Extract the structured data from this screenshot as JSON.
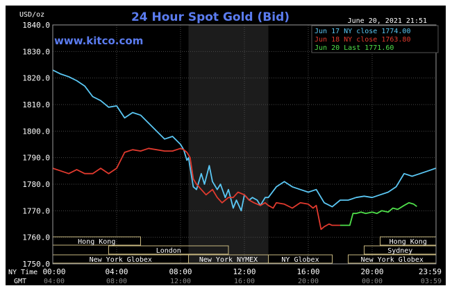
{
  "header": {
    "title": "24 Hour Spot Gold (Bid)",
    "units": "USD/oz",
    "timestamp": "June 20, 2021 21:51",
    "watermark": "www.kitco.com"
  },
  "legend": [
    {
      "label": "Jun 17 NY close 1774.00",
      "color": "#5bc8f5"
    },
    {
      "label": "Jun 18 NY close 1763.80",
      "color": "#e23a2e"
    },
    {
      "label": "Jun 20 Last 1771.60",
      "color": "#4fe04a"
    }
  ],
  "axes": {
    "row_label_nytime": "NY Time",
    "row_label_gmt": "GMT",
    "y_ticks": [
      "1840.0",
      "1830.0",
      "1820.0",
      "1810.0",
      "1800.0",
      "1790.0",
      "1780.0",
      "1770.0",
      "1760.0",
      "1750.0"
    ],
    "x_ticks_ny": [
      "00:00",
      "04:00",
      "08:00",
      "12:00",
      "16:00",
      "20:00",
      "23:59"
    ],
    "x_ticks_gmt": [
      "04:00",
      "08:00",
      "12:00",
      "16:00",
      "20:00",
      "00:00",
      "03:59"
    ]
  },
  "sessions": [
    {
      "label": "Hong Kong",
      "row": 0,
      "start": 0,
      "end": 5.5
    },
    {
      "label": "Hong Kong",
      "row": 0,
      "start": 20.5,
      "end": 24
    },
    {
      "label": "London",
      "row": 1,
      "start": 3.5,
      "end": 11
    },
    {
      "label": "Sydney",
      "row": 1,
      "start": 19.5,
      "end": 24
    },
    {
      "label": "New York Globex",
      "row": 2,
      "start": 0,
      "end": 8.5
    },
    {
      "label": "New York NYMEX",
      "row": 2,
      "start": 8.5,
      "end": 13.5
    },
    {
      "label": "NY Globex",
      "row": 2,
      "start": 13.5,
      "end": 17.5
    },
    {
      "label": "New York Globex",
      "row": 2,
      "start": 18.5,
      "end": 24
    }
  ],
  "chart_data": {
    "type": "line",
    "title": "24 Hour Spot Gold (Bid)",
    "ylabel": "USD/oz",
    "xlabel": "NY Time",
    "ylim": [
      1750,
      1840
    ],
    "xlim": [
      0,
      24
    ],
    "shaded_region_ny_hours": [
      8.5,
      13.5
    ],
    "grid": true,
    "legend_position": "top-right",
    "series": [
      {
        "name": "Jun 17 NY close 1774.00",
        "color": "#5bc8f5",
        "x": [
          0,
          0.5,
          1,
          1.5,
          2,
          2.5,
          3,
          3.5,
          4,
          4.5,
          5,
          5.5,
          6,
          6.5,
          7,
          7.5,
          8,
          8.2,
          8.4,
          8.5,
          8.8,
          9,
          9.3,
          9.5,
          9.8,
          10,
          10.3,
          10.5,
          10.8,
          11,
          11.3,
          11.5,
          11.8,
          12,
          12.3,
          12.5,
          12.8,
          13,
          13.3,
          13.5,
          14,
          14.5,
          15,
          15.5,
          16,
          16.5,
          17,
          17.5,
          18,
          18.5,
          19,
          19.5,
          20,
          20.5,
          21,
          21.5,
          22,
          22.5,
          23,
          23.5,
          23.98
        ],
        "y": [
          1823,
          1821.5,
          1820.5,
          1819,
          1817,
          1813,
          1811.5,
          1809,
          1809.5,
          1805,
          1807,
          1806,
          1803,
          1800,
          1797,
          1798,
          1795,
          1793,
          1789,
          1790,
          1779,
          1778,
          1784,
          1780,
          1787,
          1781,
          1778,
          1780,
          1775,
          1778,
          1771,
          1774,
          1770,
          1776,
          1774,
          1775,
          1774,
          1772,
          1775,
          1775,
          1779,
          1781,
          1779,
          1778,
          1777,
          1778,
          1773,
          1771.5,
          1774,
          1774,
          1775,
          1775.5,
          1775,
          1776,
          1777,
          1779,
          1784,
          1783,
          1784,
          1785,
          1786
        ]
      },
      {
        "name": "Jun 18 NY close 1763.80",
        "color": "#e23a2e",
        "x": [
          0,
          0.5,
          1,
          1.5,
          2,
          2.5,
          3,
          3.5,
          4,
          4.5,
          5,
          5.5,
          6,
          6.5,
          7,
          7.5,
          8,
          8.2,
          8.4,
          8.6,
          8.8,
          9,
          9.3,
          9.6,
          10,
          10.3,
          10.6,
          11,
          11.3,
          11.6,
          12,
          12.3,
          12.6,
          13,
          13.3,
          13.5,
          13.8,
          14,
          14.5,
          15,
          15.5,
          16,
          16.3,
          16.5,
          16.8,
          17,
          17.3,
          17.5,
          17.8,
          18
        ],
        "y": [
          1786,
          1785,
          1784,
          1785.5,
          1784,
          1784,
          1786,
          1784,
          1786,
          1792,
          1793,
          1792.5,
          1793.5,
          1793,
          1792.5,
          1792.5,
          1793.5,
          1793,
          1792,
          1790,
          1782,
          1780,
          1778,
          1776,
          1778,
          1775,
          1773,
          1775,
          1775,
          1777,
          1776,
          1774,
          1773,
          1772,
          1773,
          1772,
          1771,
          1773,
          1772.5,
          1771,
          1773,
          1772.5,
          1771,
          1772,
          1763,
          1764,
          1765,
          1764.5,
          1764.5,
          1764.5
        ]
      },
      {
        "name": "Jun 20 Last 1771.60",
        "color": "#4fe04a",
        "x": [
          18,
          18.3,
          18.6,
          18.8,
          19,
          19.3,
          19.6,
          20,
          20.3,
          20.6,
          21,
          21.3,
          21.6,
          22,
          22.3,
          22.6,
          22.8
        ],
        "y": [
          1764.5,
          1764.5,
          1764.5,
          1769,
          1769,
          1769.5,
          1769,
          1769.5,
          1769,
          1770,
          1769.5,
          1771,
          1770.5,
          1772,
          1773,
          1772.5,
          1771.6
        ]
      }
    ]
  }
}
